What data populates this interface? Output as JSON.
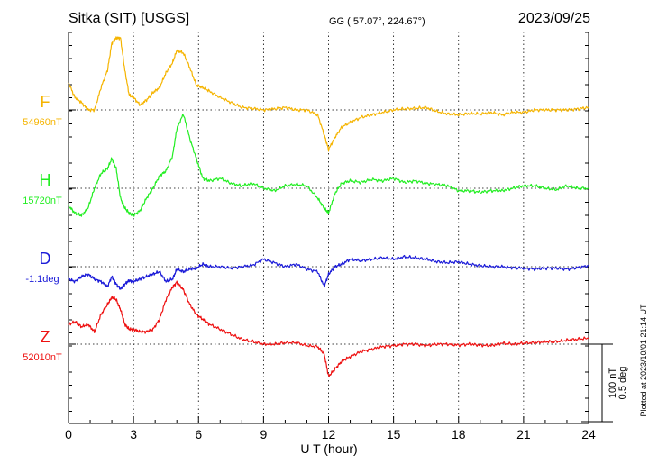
{
  "header": {
    "station": "Sitka (SIT)  [USGS]",
    "coords": "GG ( 57.07°, 224.67°)",
    "date": "2023/09/25"
  },
  "footer": {
    "plotted": "Plotted at 2023/10/01 21:14 UT"
  },
  "chart_data": {
    "type": "line",
    "xlabel": "U T (hour)",
    "ylabel": "",
    "xlim": [
      0,
      24
    ],
    "xticks": [
      "0",
      "3",
      "6",
      "9",
      "12",
      "15",
      "18",
      "21",
      "24"
    ],
    "grid": "dotted baselines at each hour mark",
    "scale_bar": {
      "line1": "100 nT",
      "line2": "0.5 deg"
    },
    "series": [
      {
        "name": "F",
        "baseline_label": "54960nT",
        "color": "#f5b400",
        "x": [
          0,
          0.3,
          0.6,
          0.9,
          1.2,
          1.5,
          1.8,
          2.0,
          2.2,
          2.4,
          2.6,
          2.8,
          3.0,
          3.3,
          3.6,
          3.9,
          4.2,
          4.5,
          4.8,
          5.0,
          5.3,
          5.6,
          5.9,
          6.2,
          6.5,
          7.0,
          7.5,
          8.0,
          8.5,
          9.0,
          9.5,
          10.0,
          10.5,
          11.0,
          11.5,
          11.8,
          12.0,
          12.3,
          12.6,
          13.0,
          13.5,
          14.0,
          14.5,
          15.0,
          15.5,
          16.0,
          16.5,
          17.0,
          17.5,
          18.0,
          18.5,
          19.0,
          19.5,
          20.0,
          20.5,
          21.0,
          21.5,
          22.0,
          22.5,
          23.0,
          23.5,
          24.0
        ],
        "values": [
          55,
          25,
          15,
          0,
          0,
          45,
          80,
          135,
          145,
          145,
          80,
          30,
          25,
          10,
          20,
          35,
          45,
          75,
          95,
          120,
          115,
          85,
          50,
          45,
          38,
          25,
          15,
          5,
          3,
          0,
          2,
          5,
          0,
          0,
          -10,
          -50,
          -80,
          -55,
          -35,
          -25,
          -15,
          -10,
          -5,
          0,
          2,
          3,
          5,
          -3,
          -8,
          -10,
          -7,
          -8,
          -5,
          -10,
          -5,
          -5,
          0,
          0,
          0,
          0,
          2,
          5
        ]
      },
      {
        "name": "H",
        "baseline_label": "15720nT",
        "color": "#22ee22",
        "x": [
          0,
          0.3,
          0.6,
          0.9,
          1.2,
          1.5,
          1.8,
          2.0,
          2.2,
          2.4,
          2.6,
          2.8,
          3.0,
          3.3,
          3.6,
          3.9,
          4.2,
          4.5,
          4.8,
          5.0,
          5.3,
          5.6,
          5.9,
          6.2,
          6.5,
          7.0,
          7.5,
          8.0,
          8.5,
          9.0,
          9.5,
          10.0,
          10.5,
          11.0,
          11.5,
          11.8,
          12.0,
          12.3,
          12.6,
          13.0,
          13.5,
          14.0,
          14.5,
          15.0,
          15.5,
          16.0,
          16.5,
          17.0,
          17.5,
          18.0,
          18.5,
          19.0,
          19.5,
          20.0,
          20.5,
          21.0,
          21.5,
          22.0,
          22.5,
          23.0,
          23.5,
          24.0
        ],
        "values": [
          -35,
          -50,
          -55,
          -40,
          0,
          30,
          40,
          60,
          40,
          -20,
          -40,
          -50,
          -55,
          -45,
          -20,
          0,
          25,
          35,
          65,
          120,
          150,
          100,
          60,
          20,
          15,
          20,
          10,
          5,
          10,
          0,
          -5,
          5,
          8,
          5,
          -20,
          -40,
          -50,
          -10,
          10,
          15,
          12,
          18,
          15,
          20,
          12,
          15,
          10,
          8,
          5,
          -5,
          -5,
          -8,
          -5,
          -5,
          0,
          5,
          5,
          0,
          -3,
          5,
          0,
          0
        ]
      },
      {
        "name": "D",
        "baseline_label": "-1.1deg",
        "color": "#1a1ad8",
        "x": [
          0,
          0.3,
          0.6,
          0.9,
          1.2,
          1.5,
          1.8,
          2.0,
          2.2,
          2.4,
          2.6,
          2.8,
          3.0,
          3.3,
          3.6,
          3.9,
          4.2,
          4.5,
          4.8,
          5.0,
          5.3,
          5.6,
          5.9,
          6.2,
          6.5,
          7.0,
          7.5,
          8.0,
          8.5,
          9.0,
          9.5,
          10.0,
          10.5,
          11.0,
          11.5,
          11.8,
          12.0,
          12.3,
          12.6,
          13.0,
          13.5,
          14.0,
          14.5,
          15.0,
          15.5,
          16.0,
          16.5,
          17.0,
          17.5,
          18.0,
          18.5,
          19.0,
          19.5,
          20.0,
          20.5,
          21.0,
          21.5,
          22.0,
          22.5,
          23.0,
          23.5,
          24.0
        ],
        "values": [
          -25,
          -30,
          -20,
          -15,
          -25,
          -30,
          -40,
          -20,
          -35,
          -45,
          -35,
          -28,
          -30,
          -25,
          -20,
          -15,
          -10,
          -30,
          -25,
          -5,
          -10,
          -5,
          -3,
          5,
          0,
          0,
          -3,
          0,
          3,
          15,
          8,
          0,
          5,
          -5,
          -10,
          -40,
          -15,
          0,
          5,
          15,
          12,
          15,
          18,
          15,
          20,
          18,
          15,
          10,
          8,
          10,
          5,
          2,
          0,
          0,
          -2,
          -3,
          -5,
          -3,
          -3,
          -5,
          -2,
          2
        ]
      },
      {
        "name": "Z",
        "baseline_label": "52010nT",
        "color": "#ee1111",
        "x": [
          0,
          0.3,
          0.6,
          0.9,
          1.2,
          1.5,
          1.8,
          2.0,
          2.2,
          2.4,
          2.6,
          2.8,
          3.0,
          3.3,
          3.6,
          3.9,
          4.2,
          4.5,
          4.8,
          5.0,
          5.3,
          5.6,
          5.9,
          6.2,
          6.5,
          7.0,
          7.5,
          8.0,
          8.5,
          9.0,
          9.5,
          10.0,
          10.5,
          11.0,
          11.5,
          11.8,
          12.0,
          12.3,
          12.6,
          13.0,
          13.5,
          14.0,
          14.5,
          15.0,
          15.5,
          16.0,
          16.5,
          17.0,
          17.5,
          18.0,
          18.5,
          19.0,
          19.5,
          20.0,
          20.5,
          21.0,
          21.5,
          22.0,
          22.5,
          23.0,
          23.5,
          24.0
        ],
        "values": [
          40,
          45,
          35,
          40,
          25,
          60,
          80,
          95,
          90,
          70,
          40,
          30,
          30,
          25,
          25,
          30,
          50,
          90,
          115,
          125,
          110,
          80,
          60,
          50,
          40,
          30,
          20,
          10,
          5,
          0,
          0,
          3,
          3,
          -3,
          -5,
          -20,
          -65,
          -50,
          -35,
          -25,
          -15,
          -10,
          -5,
          -3,
          0,
          0,
          -3,
          0,
          0,
          -2,
          0,
          -2,
          -3,
          2,
          0,
          2,
          3,
          5,
          5,
          8,
          10,
          12
        ]
      }
    ]
  }
}
